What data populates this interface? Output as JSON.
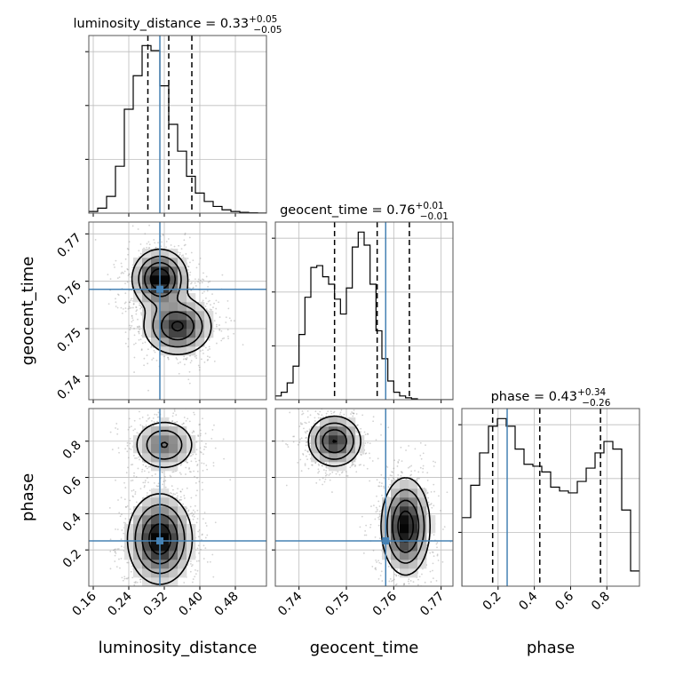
{
  "chart_data": {
    "type": "corner",
    "grid": true,
    "params": [
      {
        "name": "luminosity_distance",
        "label": "luminosity_distance",
        "range": [
          0.15,
          0.55
        ],
        "ticks": [
          0.16,
          0.24,
          0.32,
          0.4,
          0.48
        ],
        "tick_labels": [
          "0.16",
          "0.24",
          "0.32",
          "0.40",
          "0.48"
        ],
        "truth": 0.31,
        "quantiles": [
          0.283,
          0.33,
          0.382
        ],
        "title": {
          "main": "luminosity_distance = 0.33",
          "sup": "+0.05",
          "sub": "−0.05"
        },
        "hist": {
          "edges_start": 0.15,
          "bin_width": 0.02,
          "counts": [
            0.01,
            0.03,
            0.1,
            0.28,
            0.62,
            0.82,
            1.0,
            0.97,
            0.76,
            0.53,
            0.37,
            0.22,
            0.12,
            0.07,
            0.04,
            0.02,
            0.01,
            0.005,
            0.002,
            0.001
          ]
        }
      },
      {
        "name": "geocent_time",
        "label": "geocent_time",
        "range": [
          0.735,
          0.7725
        ],
        "ticks": [
          0.74,
          0.75,
          0.76,
          0.77
        ],
        "tick_labels": [
          "0.74",
          "0.75",
          "0.76",
          "0.77"
        ],
        "truth": 0.7583,
        "quantiles": [
          0.7475,
          0.7565,
          0.7633
        ],
        "title": {
          "main": "geocent_time = 0.76",
          "sup": "+0.01",
          "sub": "−0.01"
        },
        "hist": {
          "edges_start": 0.735,
          "bin_width": 0.00125,
          "counts": [
            0.02,
            0.04,
            0.09,
            0.18,
            0.35,
            0.55,
            0.71,
            0.72,
            0.66,
            0.62,
            0.54,
            0.46,
            0.6,
            0.82,
            0.9,
            0.83,
            0.62,
            0.37,
            0.22,
            0.1,
            0.04,
            0.02,
            0.01,
            0.005,
            0.0,
            0.0,
            0.0,
            0.0,
            0.0,
            0.0
          ]
        }
      },
      {
        "name": "phase",
        "label": "phase",
        "range": [
          0.0,
          0.98
        ],
        "ticks": [
          0.2,
          0.4,
          0.6,
          0.8
        ],
        "tick_labels": [
          "0.2",
          "0.4",
          "0.6",
          "0.8"
        ],
        "truth": 0.25,
        "quantiles": [
          0.17,
          0.43,
          0.765
        ],
        "title": {
          "main": "phase = 0.43",
          "sup": "+0.34",
          "sub": "−0.26"
        },
        "hist": {
          "edges_start": 0.0,
          "bin_width": 0.049,
          "counts": [
            0.36,
            0.53,
            0.7,
            0.84,
            0.88,
            0.84,
            0.72,
            0.64,
            0.63,
            0.6,
            0.52,
            0.5,
            0.49,
            0.55,
            0.62,
            0.7,
            0.76,
            0.72,
            0.4,
            0.08
          ]
        }
      }
    ],
    "pair_panels": [
      {
        "x": "luminosity_distance",
        "y": "geocent_time",
        "modes": [
          {
            "mx": 0.31,
            "my": 0.7605,
            "sx": 0.03,
            "sy": 0.003,
            "w": 0.55
          },
          {
            "mx": 0.35,
            "my": 0.7505,
            "sx": 0.038,
            "sy": 0.003,
            "w": 0.45
          }
        ]
      },
      {
        "x": "luminosity_distance",
        "y": "phase",
        "modes": [
          {
            "mx": 0.32,
            "my": 0.78,
            "sx": 0.035,
            "sy": 0.07,
            "w": 0.35
          },
          {
            "mx": 0.31,
            "my": 0.26,
            "sx": 0.035,
            "sy": 0.12,
            "w": 0.65
          }
        ]
      },
      {
        "x": "geocent_time",
        "y": "phase",
        "modes": [
          {
            "mx": 0.7475,
            "my": 0.8,
            "sx": 0.0028,
            "sy": 0.07,
            "w": 0.45
          },
          {
            "mx": 0.7625,
            "my": 0.33,
            "sx": 0.0025,
            "sy": 0.13,
            "w": 0.55
          }
        ]
      }
    ],
    "colors": {
      "truth": "#4682b4",
      "hist": "#000000",
      "grid": "#bdbdbd",
      "scatter": "#7f7f7f"
    }
  }
}
